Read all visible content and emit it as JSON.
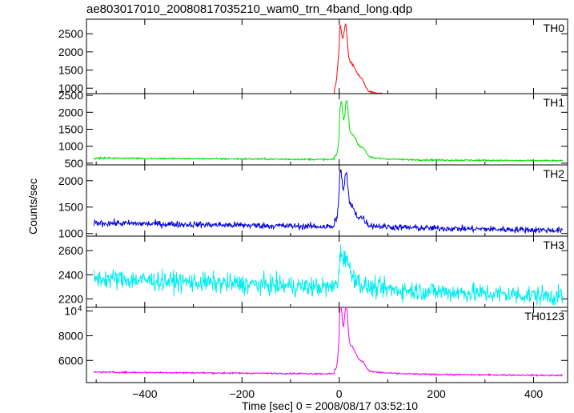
{
  "chart_data": {
    "type": "line",
    "title": "ae803017010_20080817035210_wam0_trn_4band_long.qdp",
    "xlabel": "Time [sec] 0 = 2008/08/17 03:52:10",
    "ylabel": "Counts/sec",
    "xlim": [
      -520,
      470
    ],
    "x_ticks": [
      {
        "value": -400,
        "label": "−400"
      },
      {
        "value": -200,
        "label": "−200"
      },
      {
        "value": 0,
        "label": "0"
      },
      {
        "value": 200,
        "label": "200"
      },
      {
        "value": 400,
        "label": "400"
      }
    ],
    "x_range": [
      -505,
      460
    ],
    "grid": false,
    "panels": [
      {
        "name": "TH0",
        "color": "#ff0000",
        "ylim": [
          850,
          2900
        ],
        "y_ticks": [
          {
            "value": 1000,
            "label": "1000"
          },
          {
            "value": 1500,
            "label": "1500"
          },
          {
            "value": 2000,
            "label": "2000"
          },
          {
            "value": 2500,
            "label": "2500"
          }
        ],
        "baseline_start": 830,
        "baseline_end": 760,
        "noise": 18,
        "peaks": [
          {
            "t": 2,
            "height": 1300,
            "width": 6
          },
          {
            "t": 13,
            "height": 1200,
            "width": 5
          },
          {
            "t": 25,
            "height": 650,
            "width": 18
          },
          {
            "t": 48,
            "height": 170,
            "width": 8
          }
        ],
        "tail": {
          "amp": 420,
          "tau": 45
        },
        "pre": {
          "amp": 160,
          "t": -8,
          "width": 12
        }
      },
      {
        "name": "TH1",
        "color": "#00dd00",
        "ylim": [
          450,
          2550
        ],
        "y_ticks": [
          {
            "value": 500,
            "label": "500"
          },
          {
            "value": 1000,
            "label": "1000"
          },
          {
            "value": 1500,
            "label": "1500"
          },
          {
            "value": 2000,
            "label": "2000"
          },
          {
            "value": 2500,
            "label": "2500"
          }
        ],
        "baseline_start": 650,
        "baseline_end": 570,
        "noise": 18,
        "peaks": [
          {
            "t": 4,
            "height": 1300,
            "width": 5
          },
          {
            "t": 15,
            "height": 1150,
            "width": 5
          },
          {
            "t": 26,
            "height": 600,
            "width": 16
          },
          {
            "t": 50,
            "height": 200,
            "width": 8
          }
        ],
        "tail": {
          "amp": 300,
          "tau": 40
        },
        "pre": {
          "amp": 100,
          "t": -8,
          "width": 12
        }
      },
      {
        "name": "TH2",
        "color": "#0000dd",
        "ylim": [
          950,
          2300
        ],
        "y_ticks": [
          {
            "value": 1000,
            "label": "1000"
          },
          {
            "value": 1500,
            "label": "1500"
          },
          {
            "value": 2000,
            "label": "2000"
          }
        ],
        "baseline_start": 1200,
        "baseline_end": 1060,
        "noise": 45,
        "peaks": [
          {
            "t": 3,
            "height": 800,
            "width": 5
          },
          {
            "t": 14,
            "height": 700,
            "width": 5
          },
          {
            "t": 24,
            "height": 300,
            "width": 14
          },
          {
            "t": 48,
            "height": 110,
            "width": 8
          }
        ],
        "tail": {
          "amp": 180,
          "tau": 40
        },
        "pre": {
          "amp": 120,
          "t": -8,
          "width": 14
        }
      },
      {
        "name": "TH3",
        "color": "#00eeee",
        "ylim": [
          2130,
          2720
        ],
        "y_ticks": [
          {
            "value": 2200,
            "label": "2200"
          },
          {
            "value": 2400,
            "label": "2400"
          },
          {
            "value": 2600,
            "label": "2600"
          }
        ],
        "baseline_start": 2370,
        "baseline_end": 2220,
        "noise": 60,
        "peaks": [
          {
            "t": 4,
            "height": 200,
            "width": 5
          },
          {
            "t": 14,
            "height": 180,
            "width": 6
          },
          {
            "t": 26,
            "height": 80,
            "width": 16
          }
        ],
        "tail": {
          "amp": 60,
          "tau": 40
        },
        "pre": {
          "amp": 40,
          "t": -8,
          "width": 12
        }
      },
      {
        "name": "TH0123",
        "color": "#ee00ee",
        "ylim": [
          4200,
          10300
        ],
        "y_ticks": [
          {
            "value": 6000,
            "label": "6000"
          },
          {
            "value": 8000,
            "label": "8000"
          },
          {
            "value": 10000,
            "label": "10",
            "exponent": "4"
          }
        ],
        "baseline_start": 5050,
        "baseline_end": 4780,
        "noise": 45,
        "peaks": [
          {
            "t": 3,
            "height": 4300,
            "width": 5
          },
          {
            "t": 14,
            "height": 3800,
            "width": 5
          },
          {
            "t": 25,
            "height": 1700,
            "width": 16
          },
          {
            "t": 49,
            "height": 500,
            "width": 8
          }
        ],
        "tail": {
          "amp": 1000,
          "tau": 42
        },
        "pre": {
          "amp": 300,
          "t": -8,
          "width": 12
        }
      }
    ]
  }
}
